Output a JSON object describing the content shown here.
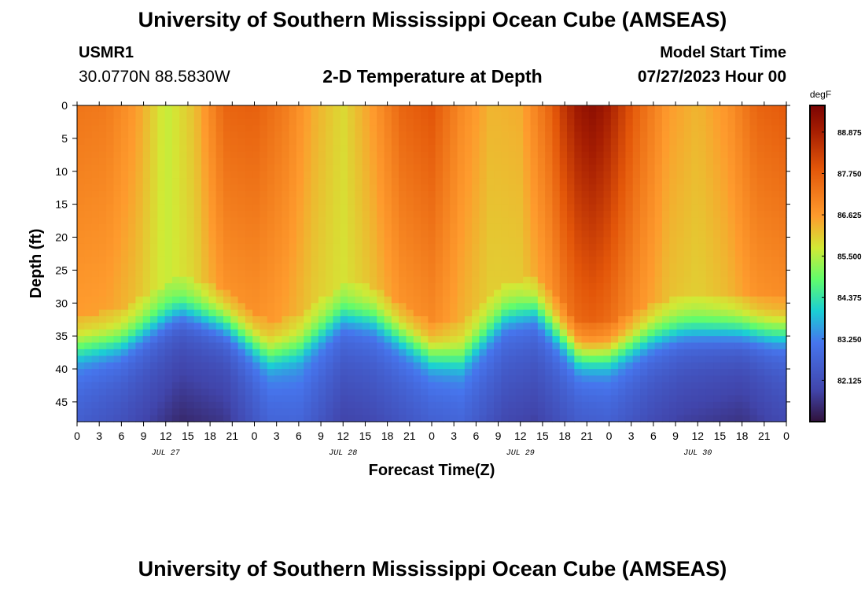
{
  "header": {
    "title": "University of Southern Mississippi Ocean Cube (AMSEAS)",
    "station": "USMR1",
    "coords": "30.0770N  88.5830W",
    "plot_title": "2-D Temperature at Depth",
    "start_label": "Model Start Time",
    "start_value": "07/27/2023 Hour 00"
  },
  "footer": {
    "title": "University of Southern Mississippi Ocean Cube (AMSEAS)"
  },
  "chart_data": {
    "type": "heatmap",
    "title": "2-D Temperature at Depth",
    "xlabel": "Forecast Time(Z)",
    "ylabel": "Depth (ft)",
    "x_range_hours": [
      0,
      96
    ],
    "ylim": [
      0,
      48
    ],
    "y_ticks": [
      0,
      5,
      10,
      15,
      20,
      25,
      30,
      35,
      40,
      45
    ],
    "x_tick_labels": [
      "0",
      "3",
      "6",
      "9",
      "12",
      "15",
      "18",
      "21",
      "0",
      "3",
      "6",
      "9",
      "12",
      "15",
      "18",
      "21",
      "0",
      "3",
      "6",
      "9",
      "12",
      "15",
      "18",
      "21",
      "0",
      "3",
      "6",
      "9",
      "12",
      "15",
      "18",
      "21",
      "0"
    ],
    "date_labels": [
      {
        "label": "JUL 27",
        "hour": 12
      },
      {
        "label": "JUL 28",
        "hour": 36
      },
      {
        "label": "JUL 29",
        "hour": 60
      },
      {
        "label": "JUL 30",
        "hour": 84
      }
    ],
    "colorbar": {
      "units": "degF",
      "min": 81.0,
      "max": 89.6,
      "tick_values": [
        82.125,
        83.25,
        84.375,
        85.5,
        86.625,
        87.75,
        88.875
      ],
      "tick_labels": [
        "82.125",
        "83.250",
        "84.375",
        "85.500",
        "86.625",
        "87.750",
        "88.875"
      ]
    },
    "thermocline_depth_ft": {
      "hours": [
        0,
        6,
        14,
        20,
        26,
        30,
        36,
        40,
        48,
        52,
        58,
        62,
        68,
        72,
        78,
        82,
        86,
        90,
        94,
        96
      ],
      "depths": [
        36,
        35,
        30,
        32,
        37,
        36,
        31,
        31.5,
        37,
        37.5,
        31,
        30,
        37,
        37,
        34,
        33,
        33,
        33,
        33.5,
        33.5
      ]
    },
    "surface_temp_degF": {
      "hours": [
        0,
        4,
        8,
        12,
        16,
        20,
        24,
        28,
        32,
        36,
        40,
        44,
        48,
        52,
        56,
        60,
        64,
        66,
        68,
        70,
        72,
        76,
        80,
        84,
        88,
        92,
        96
      ],
      "values": [
        87.3,
        87.2,
        86.6,
        85.6,
        86.2,
        87.6,
        87.7,
        87.2,
        86.4,
        85.9,
        86.6,
        87.6,
        87.9,
        86.9,
        86.3,
        86.4,
        87.6,
        88.5,
        89.1,
        89.3,
        88.9,
        87.6,
        86.6,
        86.3,
        86.7,
        87.6,
        87.8
      ]
    },
    "bottom_temp_degF": {
      "hours": [
        0,
        6,
        14,
        20,
        26,
        30,
        36,
        40,
        48,
        52,
        58,
        62,
        68,
        72,
        78,
        82,
        86,
        90,
        94,
        96
      ],
      "values": [
        82.3,
        82.0,
        81.5,
        81.6,
        82.4,
        82.5,
        81.9,
        82.0,
        82.3,
        82.4,
        82.0,
        81.9,
        82.2,
        82.3,
        81.9,
        81.7,
        81.6,
        81.5,
        81.8,
        81.9
      ]
    }
  }
}
